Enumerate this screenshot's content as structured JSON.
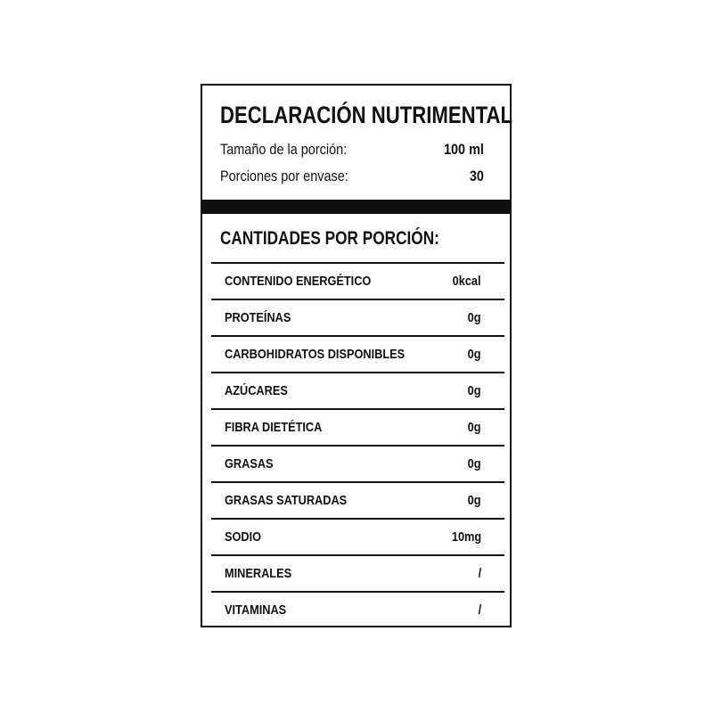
{
  "header": {
    "title": "DECLARACIÓN NUTRIMENTAL",
    "serving_label": "Tamaño de la porción:",
    "serving_value": "100 ml",
    "portions_label": "Porciones por envase:",
    "portions_value": "30"
  },
  "table": {
    "title": "CANTIDADES POR PORCIÓN:",
    "rows": [
      [
        "CONTENIDO ENERGÉTICO",
        "0kcal"
      ],
      [
        "PROTEÍNAS",
        "0g"
      ],
      [
        "CARBOHIDRATOS DISPONIBLES",
        "0g"
      ],
      [
        "AZÚCARES",
        "0g"
      ],
      [
        "FIBRA DIETÉTICA",
        "0g"
      ],
      [
        "GRASAS",
        "0g"
      ],
      [
        "GRASAS SATURADAS",
        "0g"
      ],
      [
        "SODIO",
        "10mg"
      ],
      [
        "MINERALES",
        "/"
      ],
      [
        "VITAMINAS",
        "/"
      ]
    ]
  }
}
